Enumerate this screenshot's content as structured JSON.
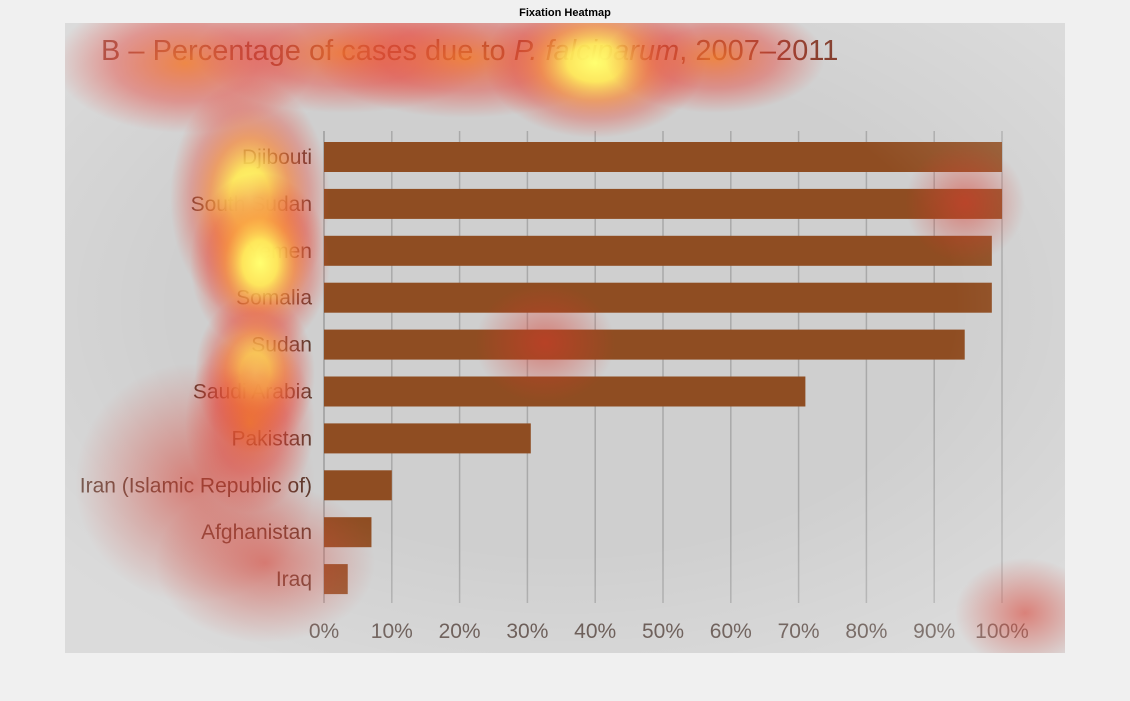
{
  "figure_title": "Fixation Heatmap",
  "colors": {
    "bar": "#8f4d22",
    "grid": "#a9a9a9",
    "panel_bg": "#cfcfcf",
    "heat_yellow": "#ffff66",
    "heat_red": "#e0402a"
  },
  "chart_data": {
    "type": "bar",
    "orientation": "horizontal",
    "title_parts": [
      {
        "text": "B – Percentage of cases due to ",
        "italic": false
      },
      {
        "text": "P. falciparum",
        "italic": true
      },
      {
        "text": ", 2007–2011",
        "italic": false
      }
    ],
    "categories": [
      "Djibouti",
      "South Sudan",
      "Yemen",
      "Somalia",
      "Sudan",
      "Saudi Arabia",
      "Pakistan",
      "Iran (Islamic Republic of)",
      "Afghanistan",
      "Iraq"
    ],
    "values": [
      100,
      100,
      98.5,
      98.5,
      94.5,
      71,
      30.5,
      10,
      7,
      3.5
    ],
    "x_ticks": [
      "0%",
      "10%",
      "20%",
      "30%",
      "40%",
      "50%",
      "60%",
      "70%",
      "80%",
      "90%",
      "100%"
    ],
    "xlim": [
      0,
      100
    ],
    "grid": true,
    "legend": "none"
  }
}
